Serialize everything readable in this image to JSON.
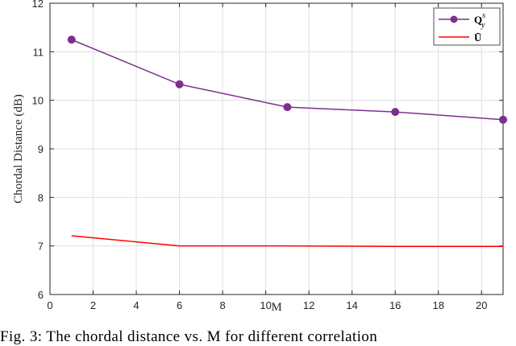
{
  "chart_data": {
    "type": "line",
    "xlabel": "M",
    "ylabel": "Chordal Distance (dB)",
    "xlim": [
      0,
      21
    ],
    "ylim": [
      6,
      12
    ],
    "xticks": [
      0,
      2,
      4,
      6,
      8,
      10,
      12,
      14,
      16,
      18,
      20
    ],
    "yticks": [
      6,
      7,
      8,
      9,
      10,
      11,
      12
    ],
    "grid": true,
    "legend_position": "top-right",
    "series": [
      {
        "name": "Qys",
        "color": "#7e2f8e",
        "marker": "circle",
        "x": [
          1,
          6,
          11,
          16,
          21
        ],
        "y": [
          11.25,
          10.33,
          9.86,
          9.76,
          9.6
        ]
      },
      {
        "name": "Ū",
        "color": "#ff0000",
        "marker": "none",
        "x": [
          1,
          6,
          11,
          16,
          21
        ],
        "y": [
          7.21,
          7.0,
          7.0,
          6.99,
          6.99
        ]
      }
    ]
  },
  "caption": "Fig. 3: The chordal distance vs. M for different correlation"
}
